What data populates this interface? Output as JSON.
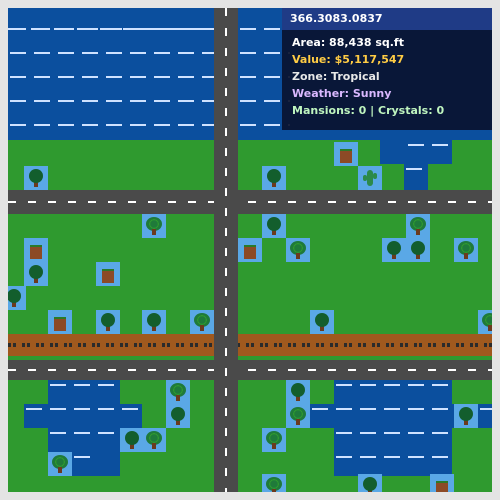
{
  "info_panel": {
    "coords": "366.3083.0837",
    "area": "Area: 88,438 sq.ft",
    "value": "Value: $5,117,547",
    "zone": "Zone: Tropical",
    "weather": "Weather: Sunny",
    "counts": "Mansions: 0 | Crystals: 0"
  },
  "colors": {
    "grass": "#2f9a2f",
    "water": "#0b4f9e",
    "road": "#4a4a4a",
    "rail": "#a0591e",
    "tile": "#5aa8e6",
    "value_text": "#ffcc44",
    "zone_text": "#e8e8e8",
    "weather_text": "#d9b8ff",
    "counts_text": "#bff5bf"
  }
}
